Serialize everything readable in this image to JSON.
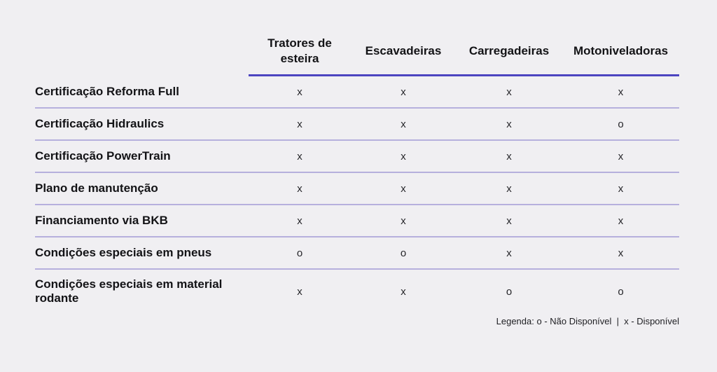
{
  "chart_data": {
    "type": "table",
    "columns": [
      "Tratores de esteira",
      "Escavadeiras",
      "Carregadeiras",
      "Motoniveladoras"
    ],
    "rows": [
      {
        "label": "Certificação Reforma Full",
        "cells": [
          "x",
          "x",
          "x",
          "x"
        ]
      },
      {
        "label": "Certificação Hidraulics",
        "cells": [
          "x",
          "x",
          "x",
          "o"
        ]
      },
      {
        "label": "Certificação PowerTrain",
        "cells": [
          "x",
          "x",
          "x",
          "x"
        ]
      },
      {
        "label": "Plano de manutenção",
        "cells": [
          "x",
          "x",
          "x",
          "x"
        ]
      },
      {
        "label": "Financiamento via BKB",
        "cells": [
          "x",
          "x",
          "x",
          "x"
        ]
      },
      {
        "label": "Condições especiais em pneus",
        "cells": [
          "o",
          "o",
          "x",
          "x"
        ]
      },
      {
        "label": "Condições especiais em material rodante",
        "cells": [
          "x",
          "x",
          "o",
          "o"
        ]
      }
    ],
    "legend_text": "Legenda: o - Não Disponível  |  x - Disponível",
    "legend_items": [
      {
        "symbol": "o",
        "meaning": "Não Disponível"
      },
      {
        "symbol": "x",
        "meaning": "Disponível"
      }
    ],
    "layout": "feature availability matrix, row labels left, 4 centered value columns, legend bottom-right"
  },
  "style": {
    "background": "#f0eff2",
    "accent_color": "#4c44c0",
    "divider_color": "#b6b0dd",
    "text_color": "#131316"
  }
}
